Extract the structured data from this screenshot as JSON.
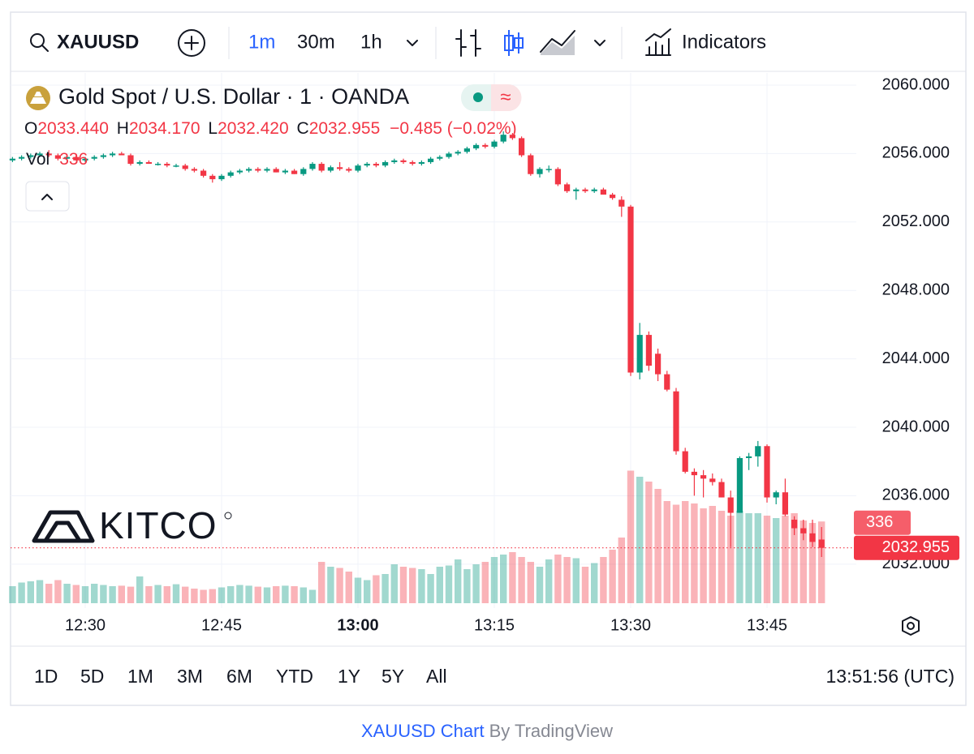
{
  "toolbar": {
    "symbol": "XAUUSD",
    "intervals": [
      "1m",
      "30m",
      "1h"
    ],
    "indicators": "Indicators"
  },
  "legend": {
    "title": "Gold Spot / U.S. Dollar · 1 · OANDA",
    "open_label": "O",
    "open": "2033.440",
    "high_label": "H",
    "high": "2034.170",
    "low_label": "L",
    "low": "2032.420",
    "close_label": "C",
    "close": "2032.955",
    "change": "−0.485 (−0.02%)",
    "volume_label": "Vol",
    "volume": "336"
  },
  "chart": {
    "type": "candlestick",
    "categories": [
      null,
      null,
      null,
      null,
      null,
      null,
      null,
      null,
      "12:30",
      null,
      null,
      null,
      null,
      null,
      null,
      null,
      null,
      null,
      null,
      null,
      null,
      null,
      null,
      "12:45",
      null,
      null,
      null,
      null,
      null,
      null,
      null,
      null,
      null,
      null,
      null,
      null,
      null,
      null,
      "13:00",
      null,
      null,
      null,
      null,
      null,
      null,
      null,
      null,
      null,
      null,
      null,
      null,
      null,
      null,
      "13:15",
      null,
      null,
      null,
      null,
      null,
      null,
      null,
      null,
      null,
      null,
      null,
      null,
      null,
      null,
      "13:30",
      null,
      null,
      null,
      null,
      null,
      null,
      null,
      null,
      null,
      null,
      null,
      null,
      null,
      null,
      "13:45",
      null,
      null,
      null,
      null,
      null,
      null
    ],
    "candles": [
      [
        2055.6,
        2055.8,
        2055.5,
        2055.7
      ],
      [
        2055.7,
        2055.9,
        2055.6,
        2055.8
      ],
      [
        2055.8,
        2056.0,
        2055.7,
        2055.9
      ],
      [
        2055.9,
        2056.1,
        2055.8,
        2056.0
      ],
      [
        2056.0,
        2056.2,
        2055.8,
        2055.9
      ],
      [
        2055.9,
        2056.0,
        2055.6,
        2055.7
      ],
      [
        2055.7,
        2055.9,
        2055.6,
        2055.8
      ],
      [
        2055.8,
        2055.9,
        2055.6,
        2055.6
      ],
      [
        2055.6,
        2055.8,
        2055.5,
        2055.7
      ],
      [
        2055.7,
        2055.9,
        2055.6,
        2055.8
      ],
      [
        2055.8,
        2056.0,
        2055.7,
        2055.9
      ],
      [
        2055.9,
        2056.1,
        2055.8,
        2056.0
      ],
      [
        2056.0,
        2056.1,
        2055.9,
        2055.9
      ],
      [
        2055.9,
        2056.0,
        2055.3,
        2055.4
      ],
      [
        2055.4,
        2055.6,
        2055.3,
        2055.5
      ],
      [
        2055.5,
        2055.6,
        2055.4,
        2055.4
      ],
      [
        2055.4,
        2055.5,
        2055.3,
        2055.4
      ],
      [
        2055.4,
        2055.5,
        2055.2,
        2055.3
      ],
      [
        2055.3,
        2055.4,
        2055.2,
        2055.3
      ],
      [
        2055.3,
        2055.4,
        2055.0,
        2055.1
      ],
      [
        2055.1,
        2055.2,
        2054.9,
        2055.0
      ],
      [
        2055.0,
        2055.1,
        2054.6,
        2054.7
      ],
      [
        2054.7,
        2054.8,
        2054.3,
        2054.5
      ],
      [
        2054.5,
        2054.8,
        2054.4,
        2054.7
      ],
      [
        2054.7,
        2055.0,
        2054.6,
        2054.9
      ],
      [
        2054.9,
        2055.1,
        2054.8,
        2055.0
      ],
      [
        2055.0,
        2055.2,
        2054.9,
        2055.1
      ],
      [
        2055.1,
        2055.2,
        2054.9,
        2055.0
      ],
      [
        2055.0,
        2055.2,
        2054.9,
        2055.1
      ],
      [
        2055.1,
        2055.2,
        2054.9,
        2054.9
      ],
      [
        2054.9,
        2055.1,
        2054.8,
        2055.0
      ],
      [
        2055.0,
        2055.1,
        2054.8,
        2054.8
      ],
      [
        2054.8,
        2055.2,
        2054.7,
        2055.1
      ],
      [
        2055.1,
        2055.5,
        2055.0,
        2055.4
      ],
      [
        2055.4,
        2055.5,
        2054.9,
        2055.0
      ],
      [
        2055.0,
        2055.3,
        2054.9,
        2055.2
      ],
      [
        2055.2,
        2055.5,
        2055.0,
        2055.1
      ],
      [
        2055.1,
        2055.2,
        2054.9,
        2055.0
      ],
      [
        2055.0,
        2055.4,
        2054.9,
        2055.3
      ],
      [
        2055.3,
        2055.5,
        2055.2,
        2055.4
      ],
      [
        2055.4,
        2055.5,
        2055.2,
        2055.3
      ],
      [
        2055.3,
        2055.6,
        2055.2,
        2055.5
      ],
      [
        2055.5,
        2055.7,
        2055.4,
        2055.6
      ],
      [
        2055.6,
        2055.7,
        2055.4,
        2055.5
      ],
      [
        2055.5,
        2055.6,
        2055.3,
        2055.4
      ],
      [
        2055.4,
        2055.6,
        2055.3,
        2055.5
      ],
      [
        2055.5,
        2055.8,
        2055.4,
        2055.7
      ],
      [
        2055.7,
        2055.9,
        2055.6,
        2055.8
      ],
      [
        2055.8,
        2056.1,
        2055.7,
        2056.0
      ],
      [
        2056.0,
        2056.2,
        2055.9,
        2056.1
      ],
      [
        2056.1,
        2056.4,
        2056.0,
        2056.3
      ],
      [
        2056.3,
        2056.6,
        2056.2,
        2056.5
      ],
      [
        2056.5,
        2056.6,
        2056.3,
        2056.4
      ],
      [
        2056.4,
        2056.8,
        2056.3,
        2056.7
      ],
      [
        2056.7,
        2057.3,
        2056.6,
        2057.1
      ],
      [
        2057.1,
        2057.2,
        2056.8,
        2056.9
      ],
      [
        2056.9,
        2057.0,
        2055.8,
        2055.9
      ],
      [
        2055.9,
        2056.0,
        2054.7,
        2054.8
      ],
      [
        2054.8,
        2055.2,
        2054.6,
        2055.1
      ],
      [
        2055.1,
        2055.3,
        2054.9,
        2055.1
      ],
      [
        2055.1,
        2055.2,
        2054.1,
        2054.2
      ],
      [
        2054.2,
        2054.3,
        2053.7,
        2053.8
      ],
      [
        2053.8,
        2054.0,
        2053.3,
        2053.9
      ],
      [
        2053.9,
        2054.0,
        2053.7,
        2053.8
      ],
      [
        2053.8,
        2054.0,
        2053.7,
        2053.9
      ],
      [
        2053.9,
        2054.0,
        2053.6,
        2053.6
      ],
      [
        2053.6,
        2053.7,
        2053.3,
        2053.4
      ],
      [
        2053.3,
        2053.5,
        2052.3,
        2052.9
      ],
      [
        2052.9,
        2053.0,
        2043.0,
        2043.2
      ],
      [
        2043.2,
        2046.1,
        2042.8,
        2045.4
      ],
      [
        2045.4,
        2045.6,
        2043.3,
        2043.6
      ],
      [
        2044.3,
        2044.6,
        2042.7,
        2043.1
      ],
      [
        2043.1,
        2043.3,
        2042.1,
        2042.2
      ],
      [
        2042.1,
        2042.3,
        2038.4,
        2038.6
      ],
      [
        2038.6,
        2038.8,
        2037.3,
        2037.4
      ],
      [
        2037.4,
        2037.6,
        2036.0,
        2037.2
      ],
      [
        2037.2,
        2037.5,
        2035.9,
        2037.0
      ],
      [
        2037.0,
        2037.3,
        2036.6,
        2036.8
      ],
      [
        2036.8,
        2037.0,
        2035.9,
        2035.9
      ],
      [
        2035.9,
        2036.3,
        2033.0,
        2035.0
      ],
      [
        2035.0,
        2038.3,
        2035.0,
        2038.2
      ],
      [
        2038.2,
        2038.5,
        2037.5,
        2038.3
      ],
      [
        2038.3,
        2039.2,
        2037.7,
        2038.9
      ],
      [
        2038.9,
        2039.0,
        2035.6,
        2035.9
      ],
      [
        2035.9,
        2036.3,
        2035.5,
        2036.2
      ],
      [
        2036.2,
        2037.0,
        2034.8,
        2034.9
      ],
      [
        2034.6,
        2034.8,
        2033.7,
        2034.1
      ],
      [
        2034.1,
        2034.6,
        2033.4,
        2033.8
      ],
      [
        2033.8,
        2034.6,
        2033.0,
        2033.3
      ],
      [
        2033.44,
        2034.17,
        2032.42,
        2032.955
      ]
    ],
    "volumes": [
      70,
      85,
      90,
      95,
      80,
      95,
      80,
      75,
      70,
      80,
      75,
      70,
      72,
      68,
      110,
      70,
      75,
      70,
      78,
      68,
      60,
      55,
      58,
      65,
      70,
      75,
      72,
      68,
      65,
      70,
      72,
      70,
      65,
      55,
      170,
      150,
      145,
      130,
      105,
      95,
      115,
      120,
      160,
      150,
      145,
      140,
      120,
      150,
      155,
      180,
      140,
      160,
      170,
      190,
      200,
      210,
      190,
      170,
      150,
      180,
      200,
      190,
      185,
      150,
      165,
      190,
      220,
      270,
      545,
      520,
      500,
      470,
      420,
      405,
      420,
      410,
      390,
      400,
      380,
      360,
      380,
      370,
      370,
      360,
      350,
      360,
      370,
      340,
      330,
      336
    ],
    "ylim": [
      2028.96,
      2060.71
    ],
    "yticks": [
      {
        "value": 2032,
        "label": "2032.000"
      },
      {
        "value": 2036,
        "label": "2036.000"
      },
      {
        "value": 2040,
        "label": "2040.000"
      },
      {
        "value": 2044,
        "label": "2044.000"
      },
      {
        "value": 2048,
        "label": "2048.000"
      },
      {
        "value": 2052,
        "label": "2052.000"
      },
      {
        "value": 2056,
        "label": "2056.000"
      },
      {
        "value": 2060,
        "label": "2060.000"
      }
    ],
    "last_price": {
      "value": 2032.955,
      "label": "2032.955"
    },
    "last_volume": "336",
    "watermark": "KITCO",
    "up_color": "#089981",
    "down_color": "#f23645"
  },
  "range_buttons": [
    "1D",
    "5D",
    "1M",
    "3M",
    "6M",
    "YTD",
    "1Y",
    "5Y",
    "All"
  ],
  "clock": "13:51:56 (UTC)",
  "footer": {
    "link": "XAUUSD Chart",
    "by": "By TradingView"
  }
}
